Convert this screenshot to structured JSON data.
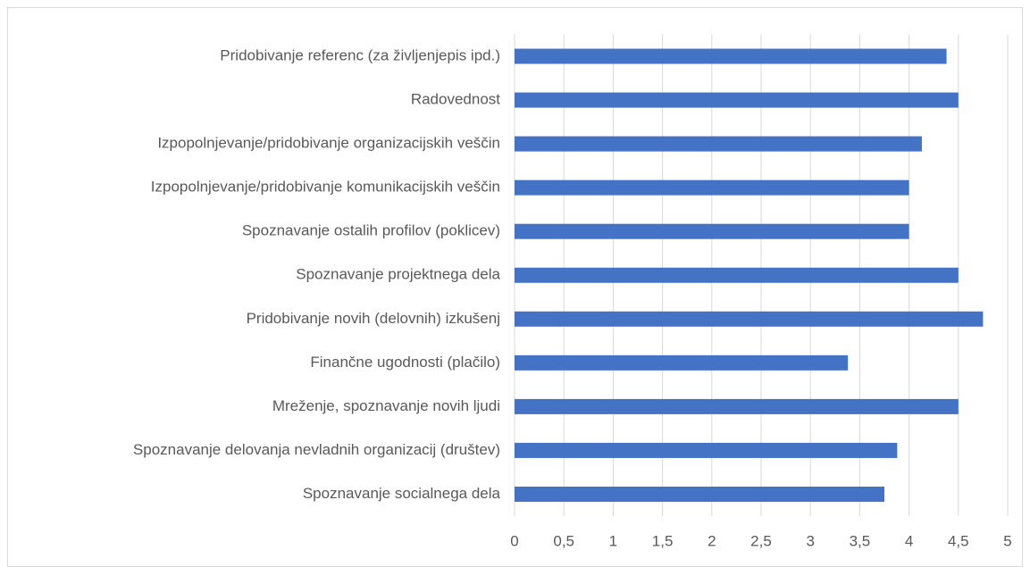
{
  "chart_data": {
    "type": "hbar",
    "categories": [
      "Pridobivanje referenc (za življenjepis ipd.)",
      "Radovednost",
      "Izpopolnjevanje/pridobivanje organizacijskih veščin",
      "Izpopolnjevanje/pridobivanje komunikacijskih veščin",
      "Spoznavanje ostalih profilov (poklicev)",
      "Spoznavanje projektnega dela",
      "Pridobivanje novih (delovnih) izkušenj",
      "Finančne ugodnosti (plačilo)",
      "Mreženje, spoznavanje novih ljudi",
      "Spoznavanje delovanja nevladnih organizacij (društev)",
      "Spoznavanje socialnega dela"
    ],
    "values": [
      4.38,
      4.5,
      4.13,
      4,
      4,
      4.5,
      4.75,
      3.38,
      4.5,
      3.88,
      3.75
    ],
    "color": "#4472c4",
    "xlim": [
      0,
      5
    ],
    "xticks": [
      0,
      {
        "value": 0.5,
        "label": "0,5"
      },
      1,
      {
        "value": 1.5,
        "label": "1,5"
      },
      2,
      {
        "value": 2.5,
        "label": "2,5"
      },
      3,
      {
        "value": 3.5,
        "label": "3,5"
      },
      4,
      {
        "value": 4.5,
        "label": "4,5"
      },
      5
    ],
    "grid": true
  }
}
